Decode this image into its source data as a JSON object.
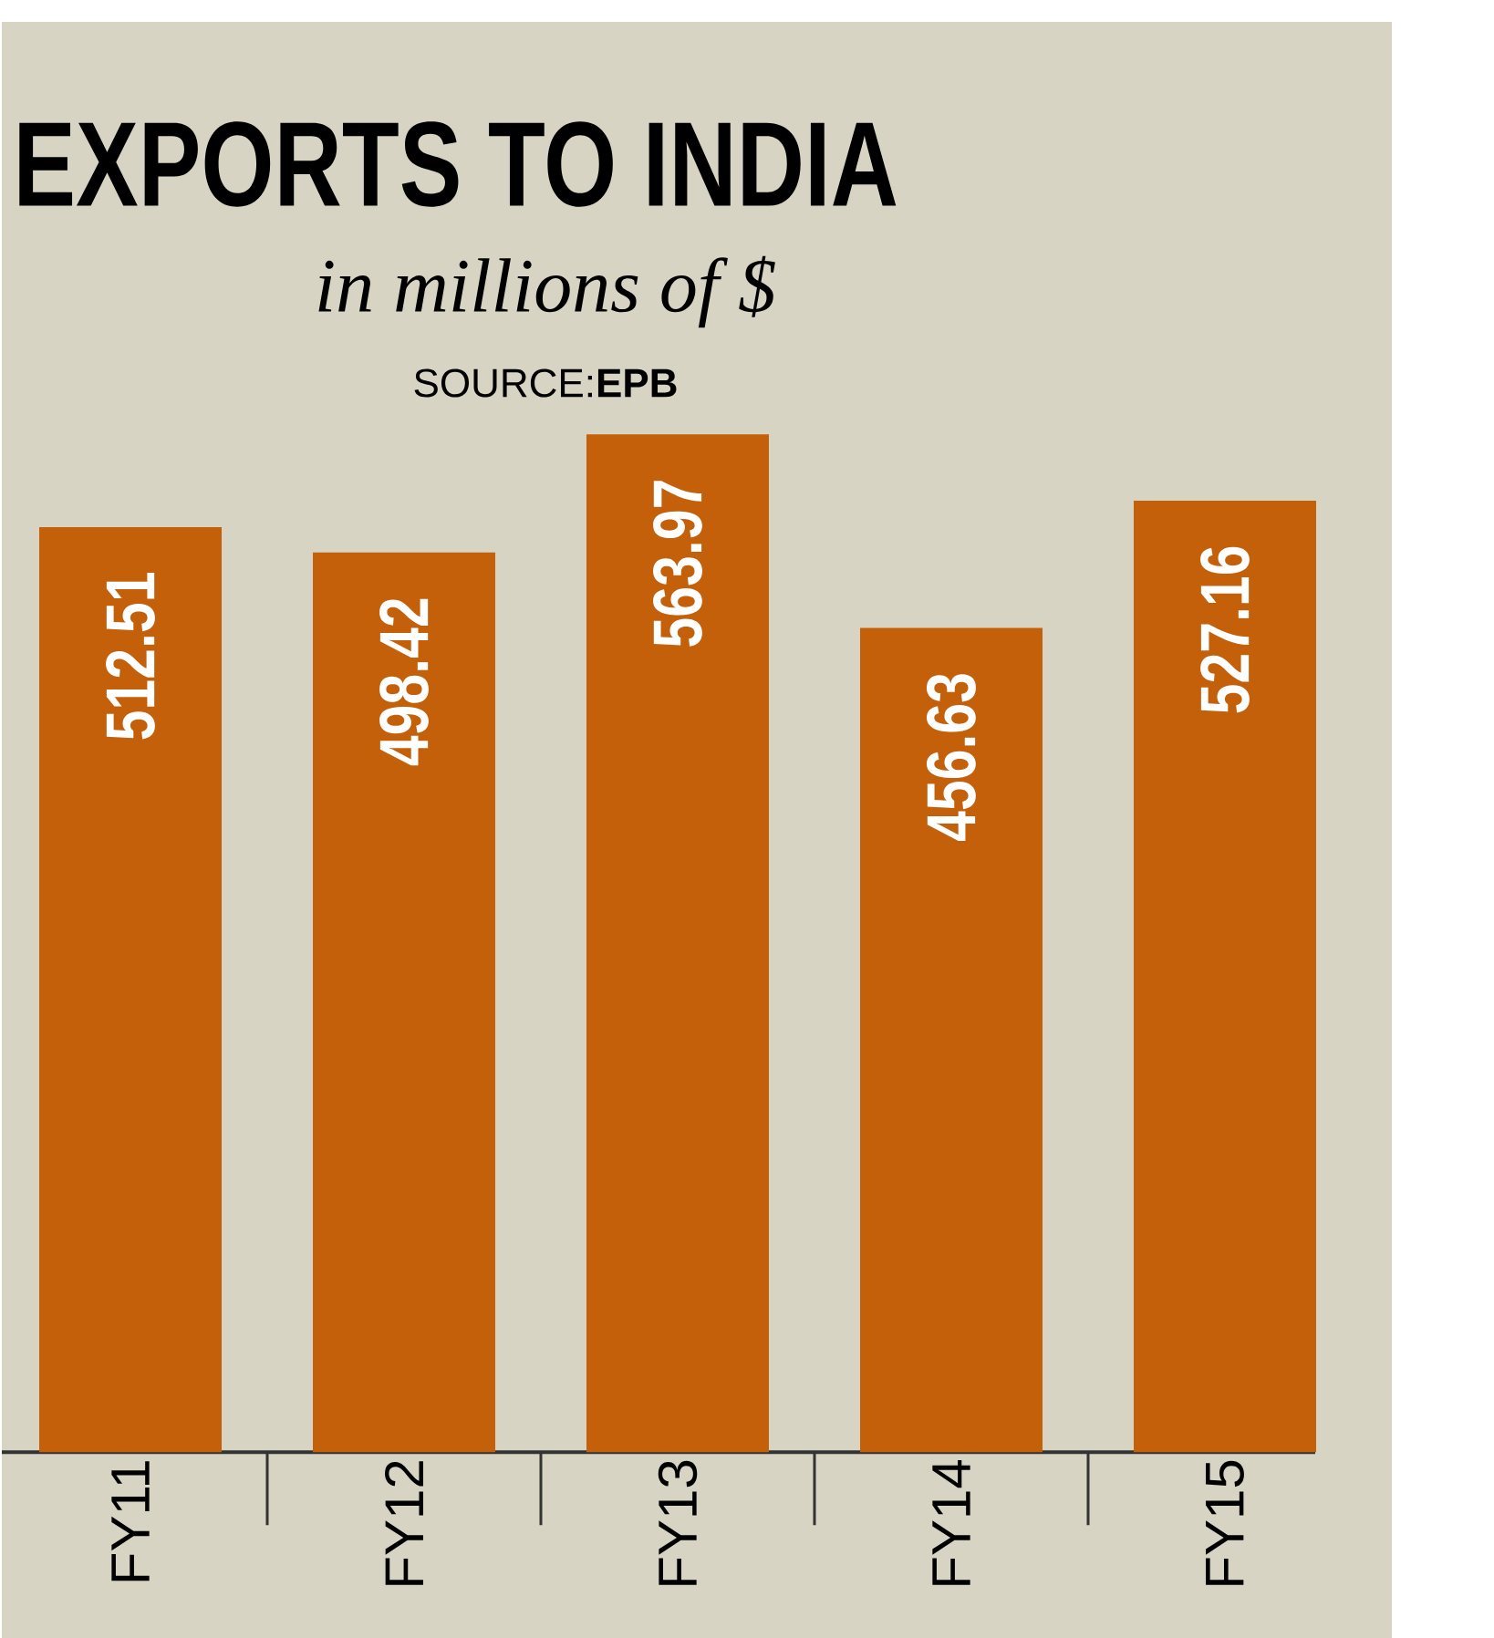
{
  "chart_data": {
    "type": "bar",
    "title": "EXPORTS TO INDIA",
    "subtitle": "in millions of $",
    "annotations": [
      "SOURCE:**EPB**"
    ],
    "categories": [
      "FY11",
      "FY12",
      "FY13",
      "FY14",
      "FY15"
    ],
    "values": [
      512.51,
      498.42,
      563.97,
      456.63,
      527.16
    ],
    "color": "#c4600a",
    "data_labels": true,
    "tick_labels": "x",
    "grid": false
  }
}
